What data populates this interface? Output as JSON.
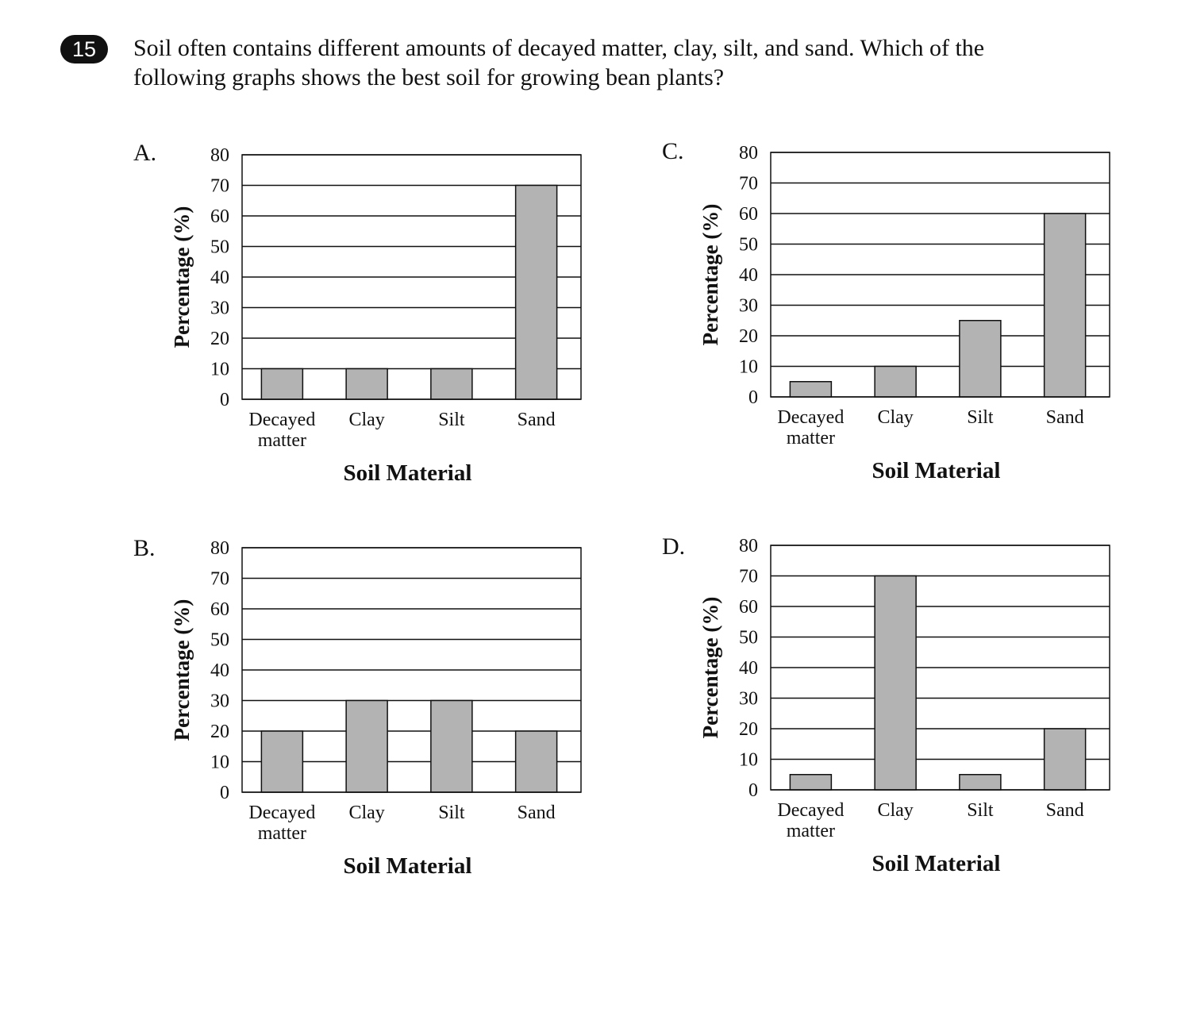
{
  "question": {
    "number": "15",
    "text_line1": "Soil often contains different amounts of decayed matter, clay, silt, and sand. Which of the",
    "text_line2": "following graphs shows the best soil for growing bean plants?"
  },
  "colors": {
    "bar_fill": "#b3b3b3",
    "line": "#111111"
  },
  "chart_data": [
    {
      "option": "A.",
      "type": "bar",
      "categories": [
        [
          "Decayed",
          "matter"
        ],
        [
          "Clay"
        ],
        [
          "Silt"
        ],
        [
          "Sand"
        ]
      ],
      "values": [
        10,
        10,
        10,
        70
      ],
      "ylabel": "Percentage (%)",
      "xlabel": "Soil Material",
      "ylim": [
        0,
        80
      ],
      "yticks": [
        0,
        10,
        20,
        30,
        40,
        50,
        60,
        70,
        80
      ],
      "grid": true
    },
    {
      "option": "B.",
      "type": "bar",
      "categories": [
        [
          "Decayed",
          "matter"
        ],
        [
          "Clay"
        ],
        [
          "Silt"
        ],
        [
          "Sand"
        ]
      ],
      "values": [
        20,
        30,
        30,
        20
      ],
      "ylabel": "Percentage (%)",
      "xlabel": "Soil Material",
      "ylim": [
        0,
        80
      ],
      "yticks": [
        0,
        10,
        20,
        30,
        40,
        50,
        60,
        70,
        80
      ],
      "grid": true
    },
    {
      "option": "C.",
      "type": "bar",
      "categories": [
        [
          "Decayed",
          "matter"
        ],
        [
          "Clay"
        ],
        [
          "Silt"
        ],
        [
          "Sand"
        ]
      ],
      "values": [
        5,
        10,
        25,
        60
      ],
      "ylabel": "Percentage (%)",
      "xlabel": "Soil Material",
      "ylim": [
        0,
        80
      ],
      "yticks": [
        0,
        10,
        20,
        30,
        40,
        50,
        60,
        70,
        80
      ],
      "grid": true
    },
    {
      "option": "D.",
      "type": "bar",
      "categories": [
        [
          "Decayed",
          "matter"
        ],
        [
          "Clay"
        ],
        [
          "Silt"
        ],
        [
          "Sand"
        ]
      ],
      "values": [
        5,
        70,
        5,
        20
      ],
      "ylabel": "Percentage (%)",
      "xlabel": "Soil Material",
      "ylim": [
        0,
        80
      ],
      "yticks": [
        0,
        10,
        20,
        30,
        40,
        50,
        60,
        70,
        80
      ],
      "grid": true
    }
  ]
}
